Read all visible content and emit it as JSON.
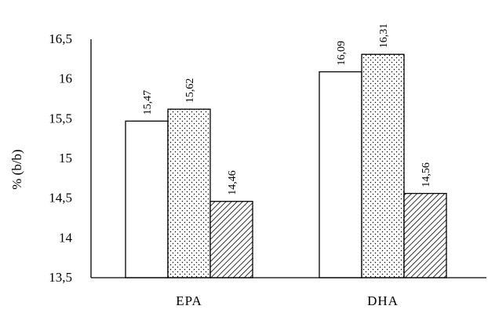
{
  "chart_data": {
    "type": "bar",
    "categories": [
      "EPA",
      "DHA"
    ],
    "series": [
      {
        "values": [
          15.47,
          16.09
        ],
        "pattern": "none"
      },
      {
        "values": [
          15.62,
          16.31
        ],
        "pattern": "dots"
      },
      {
        "values": [
          14.46,
          14.56
        ],
        "pattern": "diagonal-hatch"
      }
    ],
    "data_labels": [
      [
        "15,47",
        "15,62",
        "14,46"
      ],
      [
        "16,09",
        "16,31",
        "14,56"
      ]
    ],
    "ylabel": "% (b/b)",
    "ylim": [
      13.5,
      16.5
    ],
    "yticks": [
      "13,5",
      "14",
      "14,5",
      "15",
      "15,5",
      "16",
      "16,5"
    ],
    "ytick_values": [
      13.5,
      14,
      14.5,
      15,
      15.5,
      16,
      16.5
    ],
    "grid": false,
    "legend": "none"
  }
}
